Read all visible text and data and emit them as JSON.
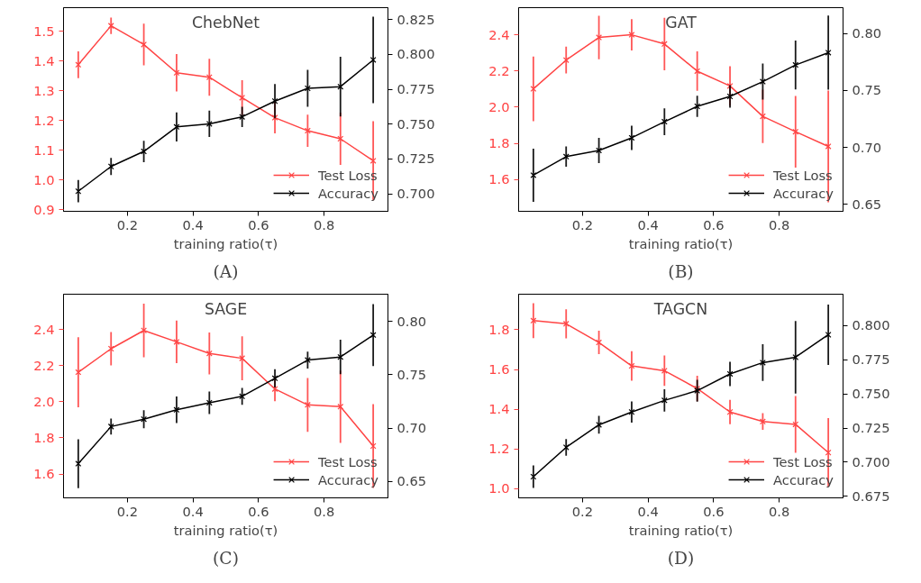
{
  "chart_data": [
    {
      "type": "line",
      "title": "ChebNet",
      "xlabel": "training ratio(τ)",
      "annotations": [
        "(A)"
      ],
      "legend": "bottom right",
      "grid": false,
      "marker": "cross",
      "x": [
        0.05,
        0.15,
        0.25,
        0.35,
        0.45,
        0.55,
        0.65,
        0.75,
        0.85,
        0.95
      ],
      "xlim": [
        0.005,
        0.995
      ],
      "xticks": [
        0.2,
        0.4,
        0.6,
        0.8
      ],
      "ylim": [
        0.895,
        1.58
      ],
      "yticks": [
        {
          "value": 0.9,
          "label": "0.9"
        },
        {
          "value": 1.0,
          "label": "1.0"
        },
        1.1,
        1.2,
        1.3,
        1.4,
        1.5
      ],
      "y2lim": [
        0.6874,
        0.8336
      ],
      "y2ticks": [
        {
          "value": 0.7,
          "label": "0.700"
        },
        0.725,
        {
          "value": 0.75,
          "label": "0.750"
        },
        0.775,
        {
          "value": 0.8,
          "label": "0.800"
        },
        0.825
      ],
      "series": [
        {
          "name": "Test Loss",
          "color": "#ff4444",
          "values": [
            1.388,
            1.519,
            1.456,
            1.361,
            1.346,
            1.277,
            1.21,
            1.166,
            1.139,
            1.065
          ],
          "errors": [
            0.045,
            0.028,
            0.07,
            0.063,
            0.062,
            0.059,
            0.053,
            0.054,
            0.088,
            0.133
          ]
        },
        {
          "name": "Accuracy",
          "color": "#000000",
          "axis": "y2",
          "values": [
            0.7018,
            0.7196,
            0.7304,
            0.748,
            0.7502,
            0.7552,
            0.7665,
            0.7757,
            0.7769,
            0.7961
          ],
          "errors": [
            0.008,
            0.0062,
            0.0077,
            0.0104,
            0.0095,
            0.0073,
            0.0123,
            0.0132,
            0.0214,
            0.031
          ]
        }
      ]
    },
    {
      "type": "line",
      "title": "GAT",
      "xlabel": "training ratio(τ)",
      "annotations": [
        "(B)"
      ],
      "legend": "bottom right",
      "grid": false,
      "marker": "cross",
      "x": [
        0.05,
        0.15,
        0.25,
        0.35,
        0.45,
        0.55,
        0.65,
        0.75,
        0.85,
        0.95
      ],
      "xlim": [
        0.005,
        0.995
      ],
      "xticks": [
        0.2,
        0.4,
        0.6,
        0.8
      ],
      "ylim": [
        1.424,
        2.55
      ],
      "yticks": [
        1.6,
        1.8,
        {
          "value": 2.0,
          "label": "2.0"
        },
        2.2,
        2.4
      ],
      "y2lim": [
        0.644,
        0.8227
      ],
      "y2ticks": [
        0.65,
        {
          "value": 0.7,
          "label": "0.70"
        },
        0.75,
        {
          "value": 0.8,
          "label": "0.80"
        }
      ],
      "series": [
        {
          "name": "Test Loss",
          "color": "#ff4444",
          "values": [
            2.101,
            2.26,
            2.385,
            2.4,
            2.349,
            2.199,
            2.117,
            1.949,
            1.864,
            1.783
          ],
          "errors": [
            0.179,
            0.074,
            0.12,
            0.087,
            0.145,
            0.109,
            0.109,
            0.147,
            0.198,
            0.309
          ]
        },
        {
          "name": "Accuracy",
          "color": "#000000",
          "axis": "y2",
          "values": [
            0.6757,
            0.692,
            0.6974,
            0.7085,
            0.7226,
            0.7361,
            0.7448,
            0.7578,
            0.7724,
            0.7832
          ],
          "errors": [
            0.0233,
            0.0089,
            0.011,
            0.0107,
            0.0118,
            0.0093,
            0.0099,
            0.0158,
            0.0214,
            0.0325
          ]
        }
      ]
    },
    {
      "type": "line",
      "title": "SAGE",
      "xlabel": "training ratio(τ)",
      "annotations": [
        "(C)"
      ],
      "legend": "bottom right",
      "grid": false,
      "marker": "cross",
      "x": [
        0.05,
        0.15,
        0.25,
        0.35,
        0.45,
        0.55,
        0.65,
        0.75,
        0.85,
        0.95
      ],
      "xlim": [
        0.005,
        0.995
      ],
      "xticks": [
        0.2,
        0.4,
        0.6,
        0.8
      ],
      "ylim": [
        1.468,
        2.596
      ],
      "yticks": [
        1.6,
        1.8,
        {
          "value": 2.0,
          "label": "2.0"
        },
        2.2,
        2.4
      ],
      "y2lim": [
        0.6346,
        0.8254
      ],
      "y2ticks": [
        0.65,
        {
          "value": 0.7,
          "label": "0.70"
        },
        0.75,
        {
          "value": 0.8,
          "label": "0.80"
        }
      ],
      "series": [
        {
          "name": "Test Loss",
          "color": "#ff4444",
          "values": [
            2.164,
            2.294,
            2.395,
            2.332,
            2.268,
            2.241,
            2.071,
            1.983,
            1.973,
            1.755
          ],
          "errors": [
            0.194,
            0.092,
            0.148,
            0.118,
            0.116,
            0.122,
            0.068,
            0.149,
            0.2,
            0.232
          ]
        },
        {
          "name": "Accuracy",
          "color": "#000000",
          "axis": "y2",
          "values": [
            0.6666,
            0.7014,
            0.7083,
            0.7171,
            0.7237,
            0.7297,
            0.7466,
            0.7637,
            0.7666,
            0.7871
          ],
          "errors": [
            0.0229,
            0.0074,
            0.0084,
            0.0124,
            0.0106,
            0.008,
            0.0086,
            0.0079,
            0.0161,
            0.029
          ]
        }
      ]
    },
    {
      "type": "line",
      "title": "TAGCN",
      "xlabel": "training ratio(τ)",
      "annotations": [
        "(D)"
      ],
      "legend": "bottom right",
      "grid": false,
      "marker": "cross",
      "x": [
        0.05,
        0.15,
        0.25,
        0.35,
        0.45,
        0.55,
        0.65,
        0.75,
        0.85,
        0.95
      ],
      "xlim": [
        0.005,
        0.995
      ],
      "xticks": [
        0.2,
        0.4,
        0.6,
        0.8
      ],
      "ylim": [
        0.954,
        1.979
      ],
      "yticks": [
        {
          "value": 1.0,
          "label": "1.0"
        },
        1.2,
        1.4,
        1.6,
        1.8
      ],
      "y2lim": [
        0.6739,
        0.8231
      ],
      "y2ticks": [
        0.675,
        {
          "value": 0.7,
          "label": "0.700"
        },
        0.725,
        {
          "value": 0.75,
          "label": "0.750"
        },
        0.775,
        {
          "value": 0.8,
          "label": "0.800"
        }
      ],
      "series": [
        {
          "name": "Test Loss",
          "color": "#ff4444",
          "values": [
            1.846,
            1.83,
            1.736,
            1.618,
            1.594,
            1.504,
            1.386,
            1.338,
            1.324,
            1.182
          ],
          "errors": [
            0.088,
            0.073,
            0.059,
            0.074,
            0.077,
            0.064,
            0.061,
            0.042,
            0.143,
            0.173
          ]
        },
        {
          "name": "Accuracy",
          "color": "#000000",
          "axis": "y2",
          "values": [
            0.6894,
            0.7109,
            0.7274,
            0.7368,
            0.7453,
            0.7524,
            0.7647,
            0.773,
            0.7769,
            0.7934
          ],
          "errors": [
            0.0082,
            0.0061,
            0.0065,
            0.0078,
            0.0082,
            0.008,
            0.0089,
            0.0135,
            0.0266,
            0.0221
          ]
        }
      ]
    }
  ]
}
